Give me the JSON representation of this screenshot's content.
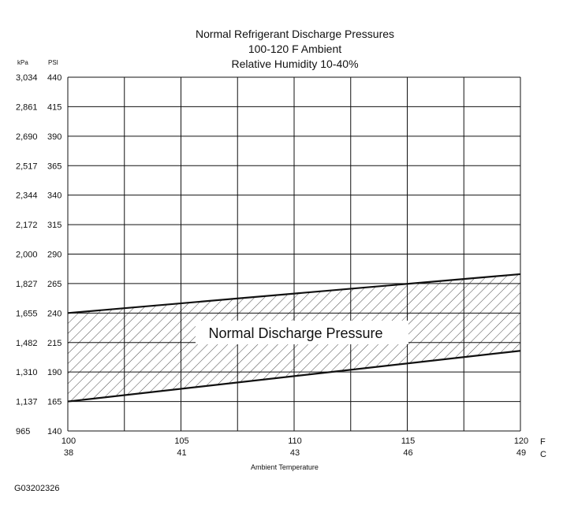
{
  "title_lines": [
    "Normal  Refrigerant  Discharge  Pressures",
    "100-120 F Ambient",
    "Relative Humidity 10-40%"
  ],
  "figure_id": "G03202326",
  "chart_data": {
    "type": "area",
    "title": "Normal  Refrigerant  Discharge  Pressures",
    "subtitle": [
      "100-120 F Ambient",
      "Relative Humidity 10-40%"
    ],
    "xlabel": "Ambient Temperature",
    "x_unit_labels": [
      "F",
      "C"
    ],
    "y_headers": [
      "kPa",
      "PSI"
    ],
    "xlim": [
      100,
      120
    ],
    "ylim": [
      140,
      440
    ],
    "grid": true,
    "x_ticks_f": [
      "100",
      "105",
      "110",
      "115",
      "120"
    ],
    "x_ticks_c": [
      "38",
      "41",
      "43",
      "46",
      "49"
    ],
    "x_tick_values": [
      100,
      105,
      110,
      115,
      120
    ],
    "x_gridlines": [
      100,
      102.5,
      105,
      107.5,
      110,
      112.5,
      115,
      117.5,
      120
    ],
    "y_ticks_psi": [
      "440",
      "415",
      "390",
      "365",
      "340",
      "315",
      "290",
      "265",
      "240",
      "215",
      "190",
      "165",
      "140"
    ],
    "y_ticks_kpa": [
      "3,034",
      "2,861",
      "2,690",
      "2,517",
      "2,344",
      "2,172",
      "2,000",
      "1,827",
      "1,655",
      "1,482",
      "1,310",
      "1,137",
      "965"
    ],
    "y_tick_values": [
      440,
      415,
      390,
      365,
      340,
      315,
      290,
      265,
      240,
      215,
      190,
      165,
      140
    ],
    "band_label": "Normal Discharge Pressure",
    "series": [
      {
        "name": "upper",
        "x": [
          100,
          120
        ],
        "y": [
          240,
          273
        ]
      },
      {
        "name": "lower",
        "x": [
          100,
          120
        ],
        "y": [
          165,
          208
        ]
      }
    ]
  }
}
